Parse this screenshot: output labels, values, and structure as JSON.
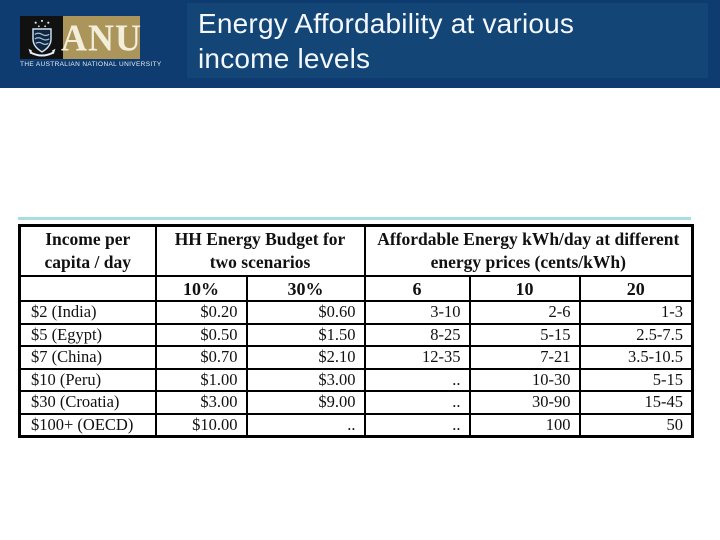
{
  "header": {
    "title_line1": "Energy Affordability at various",
    "title_line2": "income levels",
    "background_color": "#0e3b70",
    "title_box_color": "#134577",
    "logo": {
      "acronym": "ANU",
      "university_name": "THE AUSTRALIAN NATIONAL UNIVERSITY",
      "crest_icon": "anu-crest-icon",
      "gold_color": "#ab955a",
      "black_color": "#111111"
    }
  },
  "table": {
    "accent_line_color": "#aadde2",
    "border_color": "#000000",
    "column_groups": [
      {
        "label": "Income per capita / day",
        "colspan": 1
      },
      {
        "label": "HH Energy Budget for two scenarios",
        "colspan": 2
      },
      {
        "label": "Affordable Energy kWh/day at different energy prices (cents/kWh)",
        "colspan": 3
      }
    ],
    "sub_headers": [
      "",
      "10%",
      "30%",
      "6",
      "10",
      "20"
    ],
    "rows": [
      [
        "$2 (India)",
        "$0.20",
        "$0.60",
        "3-10",
        "2-6",
        "1-3"
      ],
      [
        "$5 (Egypt)",
        "$0.50",
        "$1.50",
        "8-25",
        "5-15",
        "2.5-7.5"
      ],
      [
        "$7 (China)",
        "$0.70",
        "$2.10",
        "12-35",
        "7-21",
        "3.5-10.5"
      ],
      [
        "$10 (Peru)",
        "$1.00",
        "$3.00",
        "..",
        "10-30",
        "5-15"
      ],
      [
        "$30 (Croatia)",
        "$3.00",
        "$9.00",
        "..",
        "30-90",
        "15-45"
      ],
      [
        "$100+ (OECD)",
        "$10.00",
        "..",
        "..",
        "100",
        "50"
      ]
    ]
  }
}
